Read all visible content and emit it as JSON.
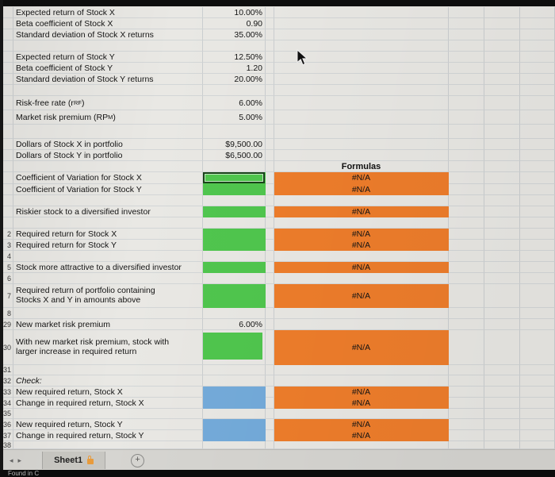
{
  "colors": {
    "input_green": "#50c64e",
    "input_blue": "#74abda",
    "formula_orange": "#ee7d2b"
  },
  "sheet": {
    "rows": [
      {
        "num": "",
        "label": "Expected return of Stock X",
        "value": "10.00%"
      },
      {
        "num": "",
        "label": "Beta coefficient of Stock X",
        "value": "0.90"
      },
      {
        "num": "",
        "label": "Standard deviation of Stock X returns",
        "value": "35.00%"
      },
      {
        "num": ""
      },
      {
        "num": "",
        "label": "Expected return of Stock Y",
        "value": "12.50%"
      },
      {
        "num": "",
        "label": "Beta coefficient of Stock Y",
        "value": "1.20"
      },
      {
        "num": "",
        "label": "Standard deviation of Stock Y returns",
        "value": "20.00%"
      },
      {
        "num": ""
      },
      {
        "num": "",
        "label_pre": "Risk-free rate (r",
        "label_sub": "RF",
        "label_post": ")",
        "value": "6.00%"
      },
      {
        "num": "",
        "label_pre": "Market risk premium (RP",
        "label_sub": "M",
        "label_post": ")",
        "value": "5.00%"
      },
      {
        "num": ""
      },
      {
        "num": "",
        "label": "Dollars of Stock X in portfolio",
        "value": "$9,500.00"
      },
      {
        "num": "",
        "label": "Dollars of Stock Y in portfolio",
        "value": "$6,500.00"
      },
      {
        "num": "",
        "header": "Formulas"
      },
      {
        "num": "",
        "label": "Coefficient of Variation for Stock X",
        "fill": "green",
        "selected": true,
        "formula": "#N/A"
      },
      {
        "num": "",
        "label": "Coefficient of Variation for Stock Y",
        "fill": "green",
        "formula": "#N/A"
      },
      {
        "num": ""
      },
      {
        "num": "",
        "label": "Riskier stock to a diversified investor",
        "fill": "green",
        "formula": "#N/A"
      },
      {
        "num": ""
      },
      {
        "num": "2",
        "label": "Required return for Stock X",
        "fill": "green",
        "formula": "#N/A"
      },
      {
        "num": "3",
        "label": "Required return for Stock Y",
        "fill": "green",
        "formula": "#N/A"
      },
      {
        "num": "4"
      },
      {
        "num": "5",
        "label": "Stock more attractive to a diversified investor",
        "fill": "green",
        "formula": "#N/A"
      },
      {
        "num": "6"
      },
      {
        "num": "7",
        "label": "Required return of portfolio containing Stocks X and Y in amounts above",
        "fill": "green",
        "formula": "#N/A"
      },
      {
        "num": "8"
      },
      {
        "num": "29",
        "label": "New market risk premium",
        "value": "6.00%"
      },
      {
        "num": "30",
        "label": "With new market risk premium, stock with larger increase in required return",
        "fill": "green",
        "formula": "#N/A"
      },
      {
        "num": "31"
      },
      {
        "num": "32",
        "label": "Check:",
        "italic": true
      },
      {
        "num": "33",
        "label": "New required return, Stock X",
        "fill": "blue",
        "formula": "#N/A"
      },
      {
        "num": "34",
        "label": "Change in required return, Stock X",
        "fill": "blue",
        "formula": "#N/A"
      },
      {
        "num": "35"
      },
      {
        "num": "36",
        "label": "New required return, Stock Y",
        "fill": "blue",
        "formula": "#N/A"
      },
      {
        "num": "37",
        "label": "Change in required return, Stock Y",
        "fill": "blue",
        "formula": "#N/A"
      },
      {
        "num": "38"
      }
    ]
  },
  "tab_bar": {
    "active_tab": "Sheet1",
    "add_button": "+",
    "nav_left": "◂",
    "nav_right": "▸"
  },
  "status_bar": {
    "partial_text": "Found in C"
  }
}
